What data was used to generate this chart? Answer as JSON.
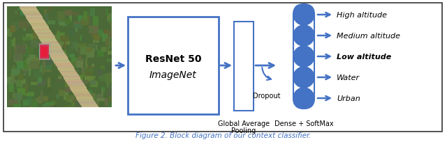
{
  "title": "Figure 2. Block diagram of our context classifier.",
  "title_color": "#4472C4",
  "title_fontsize": 7.5,
  "bg_color": "#FFFFFF",
  "border_color": "#000000",
  "blue_color": "#4472C4",
  "resnet_label1": "ResNet 50",
  "resnet_label2": "ImageNet",
  "gap_label": "Global Average\nPooling",
  "dropout_label": "Dropout",
  "dense_label": "Dense + SoftMax",
  "output_labels": [
    "High altitude",
    "Medium altitude",
    "Low altitude",
    "Water",
    "Urban"
  ],
  "output_bold": [
    false,
    false,
    true,
    false,
    false
  ],
  "figsize": [
    6.4,
    2.05
  ],
  "dpi": 100
}
